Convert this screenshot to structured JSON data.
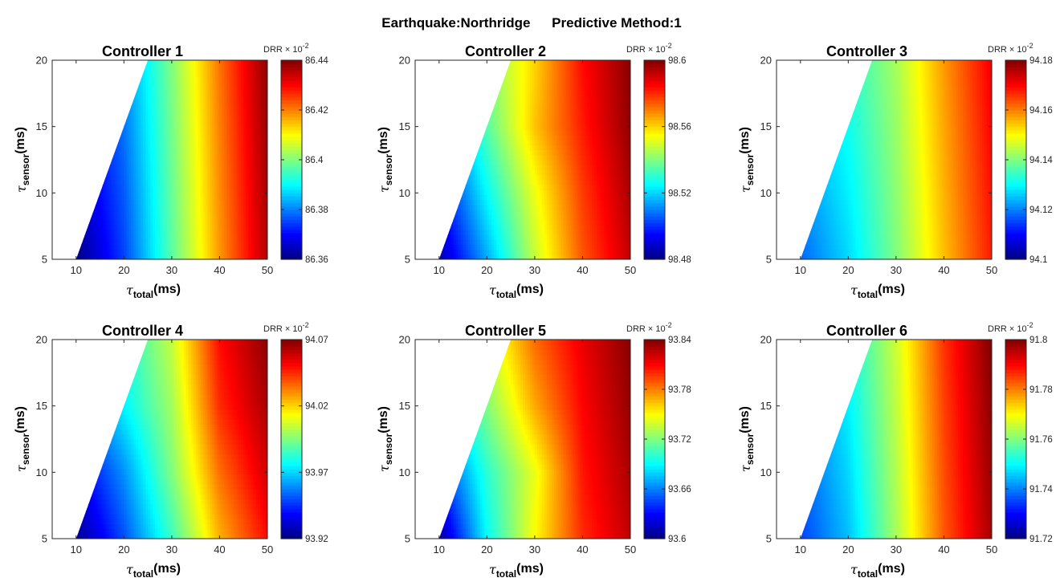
{
  "figure": {
    "title_part1": "Earthquake:Northridge",
    "title_part2": "Predictive Method:1"
  },
  "colormap": "jet",
  "chart_data": [
    {
      "type": "heatmap",
      "title": "Controller 1",
      "xlabel_symbol": "τ",
      "xlabel_sub": "total",
      "xlabel_unit": "(ms)",
      "ylabel_symbol": "τ",
      "ylabel_sub": "sensor",
      "ylabel_unit": "(ms)",
      "xlim": [
        5,
        50
      ],
      "ylim": [
        5,
        20
      ],
      "xticks": [
        "10",
        "20",
        "30",
        "40",
        "50"
      ],
      "xtick_values": [
        10,
        20,
        30,
        40,
        50
      ],
      "yticks": [
        "5",
        "10",
        "15",
        "20"
      ],
      "ytick_values": [
        5,
        10,
        15,
        20
      ],
      "valid_region": "x >= y + 5",
      "colorbar": {
        "label": "DRR",
        "multiplier": "× 10",
        "exponent": "-2",
        "min": 86.36,
        "max": 86.44,
        "ticks": [
          "86.36",
          "86.38",
          "86.4",
          "86.42",
          "86.44"
        ],
        "tick_values": [
          86.36,
          86.38,
          86.4,
          86.42,
          86.44
        ]
      },
      "x": [
        10,
        20,
        30,
        40,
        50
      ],
      "y": [
        5,
        10,
        15,
        20
      ],
      "z": [
        [
          86.36,
          86.375,
          86.397,
          86.418,
          86.436
        ],
        [
          86.364,
          86.377,
          86.398,
          86.419,
          86.437
        ],
        [
          86.366,
          86.379,
          86.399,
          86.42,
          86.438
        ],
        [
          86.368,
          86.381,
          86.4,
          86.421,
          86.439
        ]
      ]
    },
    {
      "type": "heatmap",
      "title": "Controller 2",
      "xlabel_symbol": "τ",
      "xlabel_sub": "total",
      "xlabel_unit": "(ms)",
      "ylabel_symbol": "τ",
      "ylabel_sub": "sensor",
      "ylabel_unit": "(ms)",
      "xlim": [
        5,
        50
      ],
      "ylim": [
        5,
        20
      ],
      "xticks": [
        "10",
        "20",
        "30",
        "40",
        "50"
      ],
      "xtick_values": [
        10,
        20,
        30,
        40,
        50
      ],
      "yticks": [
        "5",
        "10",
        "15",
        "20"
      ],
      "ytick_values": [
        5,
        10,
        15,
        20
      ],
      "valid_region": "x >= y + 5",
      "colorbar": {
        "label": "DRR",
        "multiplier": "× 10",
        "exponent": "-2",
        "min": 98.48,
        "max": 98.6,
        "ticks": [
          "98.48",
          "98.52",
          "98.56",
          "98.6"
        ],
        "tick_values": [
          98.48,
          98.52,
          98.56,
          98.6
        ]
      },
      "x": [
        10,
        20,
        30,
        40,
        50
      ],
      "y": [
        5,
        10,
        15,
        20
      ],
      "z": [
        [
          98.485,
          98.515,
          98.548,
          98.575,
          98.592
        ],
        [
          98.495,
          98.525,
          98.553,
          98.578,
          98.595
        ],
        [
          98.505,
          98.535,
          98.562,
          98.582,
          98.598
        ],
        [
          98.512,
          98.54,
          98.56,
          98.584,
          98.599
        ]
      ]
    },
    {
      "type": "heatmap",
      "title": "Controller 3",
      "xlabel_symbol": "τ",
      "xlabel_sub": "total",
      "xlabel_unit": "(ms)",
      "ylabel_symbol": "τ",
      "ylabel_sub": "sensor",
      "ylabel_unit": "(ms)",
      "xlim": [
        5,
        50
      ],
      "ylim": [
        5,
        20
      ],
      "xticks": [
        "10",
        "20",
        "30",
        "40",
        "50"
      ],
      "xtick_values": [
        10,
        20,
        30,
        40,
        50
      ],
      "yticks": [
        "5",
        "10",
        "15",
        "20"
      ],
      "ytick_values": [
        5,
        10,
        15,
        20
      ],
      "valid_region": "x >= y + 5",
      "colorbar": {
        "label": "DRR",
        "multiplier": "× 10",
        "exponent": "-2",
        "min": 94.1,
        "max": 94.18,
        "ticks": [
          "94.1",
          "94.12",
          "94.14",
          "94.16",
          "94.18"
        ],
        "tick_values": [
          94.1,
          94.12,
          94.14,
          94.16,
          94.18
        ]
      },
      "x": [
        10,
        20,
        30,
        40,
        50
      ],
      "y": [
        5,
        10,
        15,
        20
      ],
      "z": [
        [
          94.118,
          94.127,
          94.14,
          94.155,
          94.168
        ],
        [
          94.121,
          94.129,
          94.141,
          94.156,
          94.169
        ],
        [
          94.124,
          94.131,
          94.142,
          94.157,
          94.17
        ],
        [
          94.126,
          94.133,
          94.143,
          94.158,
          94.171
        ]
      ]
    },
    {
      "type": "heatmap",
      "title": "Controller 4",
      "xlabel_symbol": "τ",
      "xlabel_sub": "total",
      "xlabel_unit": "(ms)",
      "ylabel_symbol": "τ",
      "ylabel_sub": "sensor",
      "ylabel_unit": "(ms)",
      "xlim": [
        5,
        50
      ],
      "ylim": [
        5,
        20
      ],
      "xticks": [
        "10",
        "20",
        "30",
        "40",
        "50"
      ],
      "xtick_values": [
        10,
        20,
        30,
        40,
        50
      ],
      "yticks": [
        "5",
        "10",
        "15",
        "20"
      ],
      "ytick_values": [
        5,
        10,
        15,
        20
      ],
      "valid_region": "x >= y + 5",
      "colorbar": {
        "label": "DRR",
        "multiplier": "× 10",
        "exponent": "-2",
        "min": 93.92,
        "max": 94.07,
        "ticks": [
          "93.92",
          "93.97",
          "94.02",
          "94.07"
        ],
        "tick_values": [
          93.92,
          93.97,
          94.02,
          94.07
        ]
      },
      "x": [
        10,
        20,
        30,
        40,
        50
      ],
      "y": [
        5,
        10,
        15,
        20
      ],
      "z": [
        [
          93.922,
          93.95,
          93.985,
          94.025,
          94.05
        ],
        [
          93.935,
          93.96,
          93.995,
          94.035,
          94.058
        ],
        [
          93.95,
          93.975,
          94.0,
          94.045,
          94.064
        ],
        [
          93.96,
          93.98,
          94.005,
          94.05,
          94.068
        ]
      ]
    },
    {
      "type": "heatmap",
      "title": "Controller 5",
      "xlabel_symbol": "τ",
      "xlabel_sub": "total",
      "xlabel_unit": "(ms)",
      "ylabel_symbol": "τ",
      "ylabel_sub": "sensor",
      "ylabel_unit": "(ms)",
      "xlim": [
        5,
        50
      ],
      "ylim": [
        5,
        20
      ],
      "xticks": [
        "10",
        "20",
        "30",
        "40",
        "50"
      ],
      "xtick_values": [
        10,
        20,
        30,
        40,
        50
      ],
      "yticks": [
        "5",
        "10",
        "15",
        "20"
      ],
      "ytick_values": [
        5,
        10,
        15,
        20
      ],
      "valid_region": "x >= y + 5",
      "colorbar": {
        "label": "DRR",
        "multiplier": "× 10",
        "exponent": "-2",
        "min": 93.6,
        "max": 93.84,
        "ticks": [
          "93.6",
          "93.66",
          "93.72",
          "93.78",
          "93.84"
        ],
        "tick_values": [
          93.6,
          93.66,
          93.72,
          93.78,
          93.84
        ]
      },
      "x": [
        10,
        20,
        30,
        40,
        50
      ],
      "y": [
        5,
        10,
        15,
        20
      ],
      "z": [
        [
          93.605,
          93.69,
          93.75,
          93.8,
          93.825
        ],
        [
          93.64,
          93.7,
          93.745,
          93.805,
          93.83
        ],
        [
          93.68,
          93.72,
          93.77,
          93.81,
          93.835
        ],
        [
          93.7,
          93.735,
          93.785,
          93.815,
          93.838
        ]
      ]
    },
    {
      "type": "heatmap",
      "title": "Controller 6",
      "xlabel_symbol": "τ",
      "xlabel_sub": "total",
      "xlabel_unit": "(ms)",
      "ylabel_symbol": "τ",
      "ylabel_sub": "sensor",
      "ylabel_unit": "(ms)",
      "xlim": [
        5,
        50
      ],
      "ylim": [
        5,
        20
      ],
      "xticks": [
        "10",
        "20",
        "30",
        "40",
        "50"
      ],
      "xtick_values": [
        10,
        20,
        30,
        40,
        50
      ],
      "yticks": [
        "5",
        "10",
        "15",
        "20"
      ],
      "ytick_values": [
        5,
        10,
        15,
        20
      ],
      "valid_region": "x >= y + 5",
      "colorbar": {
        "label": "DRR",
        "multiplier": "× 10",
        "exponent": "-2",
        "min": 91.72,
        "max": 91.8,
        "ticks": [
          "91.72",
          "91.74",
          "91.76",
          "91.78",
          "91.8"
        ],
        "tick_values": [
          91.72,
          91.74,
          91.76,
          91.78,
          91.8
        ]
      },
      "x": [
        10,
        20,
        30,
        40,
        50
      ],
      "y": [
        5,
        10,
        15,
        20
      ],
      "z": [
        [
          91.735,
          91.745,
          91.763,
          91.783,
          91.797
        ],
        [
          91.737,
          91.747,
          91.764,
          91.784,
          91.798
        ],
        [
          91.739,
          91.749,
          91.765,
          91.785,
          91.799
        ],
        [
          91.741,
          91.751,
          91.766,
          91.786,
          91.8
        ]
      ]
    }
  ]
}
